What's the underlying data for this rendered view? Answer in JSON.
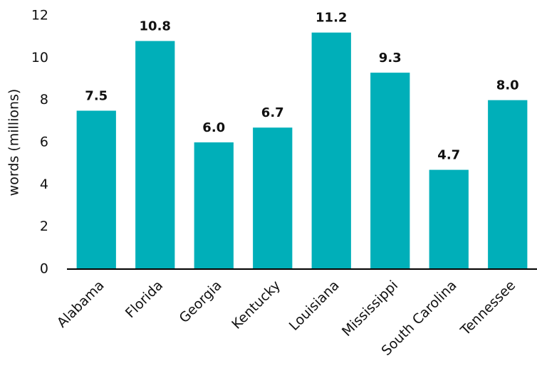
{
  "chart_data": {
    "type": "bar",
    "ylabel": "words (millions)",
    "categories": [
      "Alabama",
      "Florida",
      "Georgia",
      "Kentucky",
      "Louisiana",
      "Mississippi",
      "South Carolina",
      "Tennessee"
    ],
    "values": [
      7.5,
      10.8,
      6.0,
      6.7,
      11.2,
      9.3,
      4.7,
      8.0
    ],
    "value_labels": [
      "7.5",
      "10.8",
      "6.0",
      "6.7",
      "11.2",
      "9.3",
      "4.7",
      "8.0"
    ],
    "color": "#00afb9",
    "ylim": [
      0,
      12
    ],
    "yticks": [
      0,
      2,
      4,
      6,
      8,
      10,
      12
    ],
    "grid": false
  }
}
